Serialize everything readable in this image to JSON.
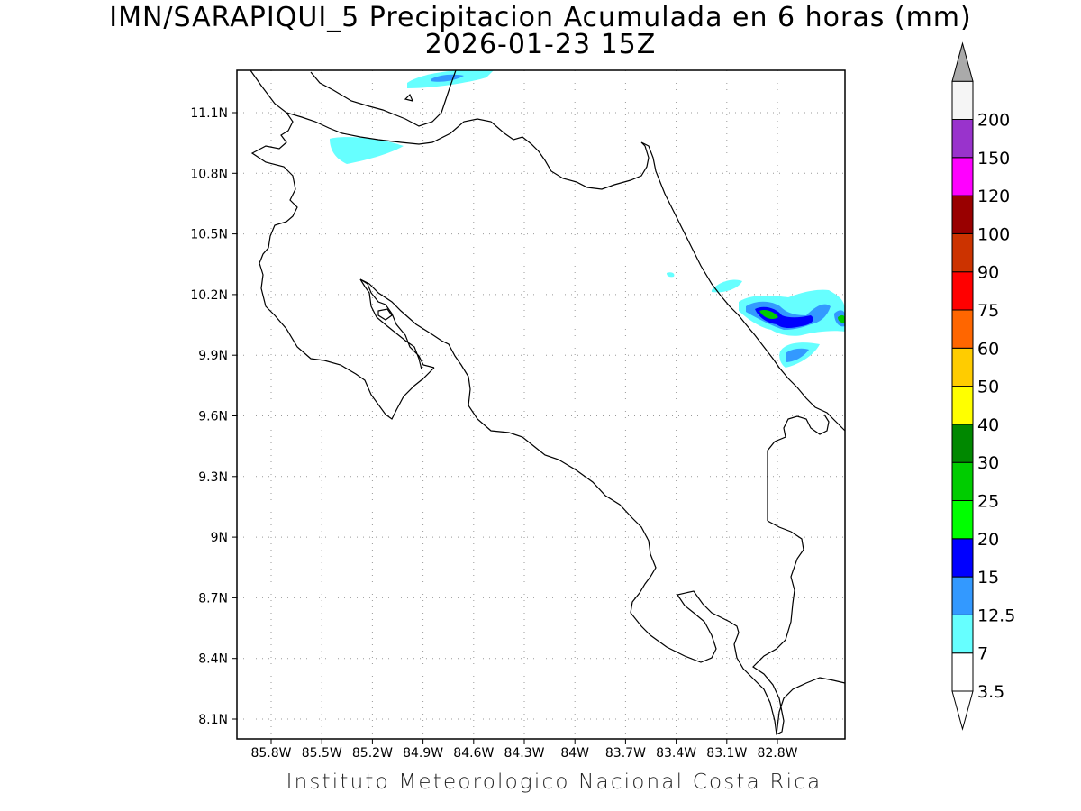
{
  "title": {
    "line1": "IMN/SARAPIQUI_5 Precipitacion Acumulada en 6 horas (mm)",
    "line2": "2026-01-23 15Z"
  },
  "footer": "Instituto Meteorologico Nacional Costa Rica",
  "axes": {
    "lon_labels": [
      "85.8W",
      "85.5W",
      "85.2W",
      "84.9W",
      "84.6W",
      "84.3W",
      "84W",
      "83.7W",
      "83.4W",
      "83.1W",
      "82.8W"
    ],
    "lat_labels": [
      "11.1N",
      "10.8N",
      "10.5N",
      "10.2N",
      "9.9N",
      "9.6N",
      "9.3N",
      "9N",
      "8.7N",
      "8.4N",
      "8.1N"
    ]
  },
  "legend": {
    "levels": [
      {
        "label": "3.5",
        "color": "#ffffff"
      },
      {
        "label": "7",
        "color": "#66ffff"
      },
      {
        "label": "12.5",
        "color": "#3399ff"
      },
      {
        "label": "15",
        "color": "#0000ff"
      },
      {
        "label": "20",
        "color": "#00ff00"
      },
      {
        "label": "25",
        "color": "#00cc00"
      },
      {
        "label": "30",
        "color": "#008800"
      },
      {
        "label": "40",
        "color": "#ffff00"
      },
      {
        "label": "50",
        "color": "#ffcc00"
      },
      {
        "label": "60",
        "color": "#ff6600"
      },
      {
        "label": "75",
        "color": "#ff0000"
      },
      {
        "label": "90",
        "color": "#cc3300"
      },
      {
        "label": "100",
        "color": "#990000"
      },
      {
        "label": "120",
        "color": "#ff00ff"
      },
      {
        "label": "150",
        "color": "#9933cc"
      },
      {
        "label": "200",
        "color": "#f5f5f5"
      }
    ],
    "top_arrow_color": "#aaaaaa"
  }
}
